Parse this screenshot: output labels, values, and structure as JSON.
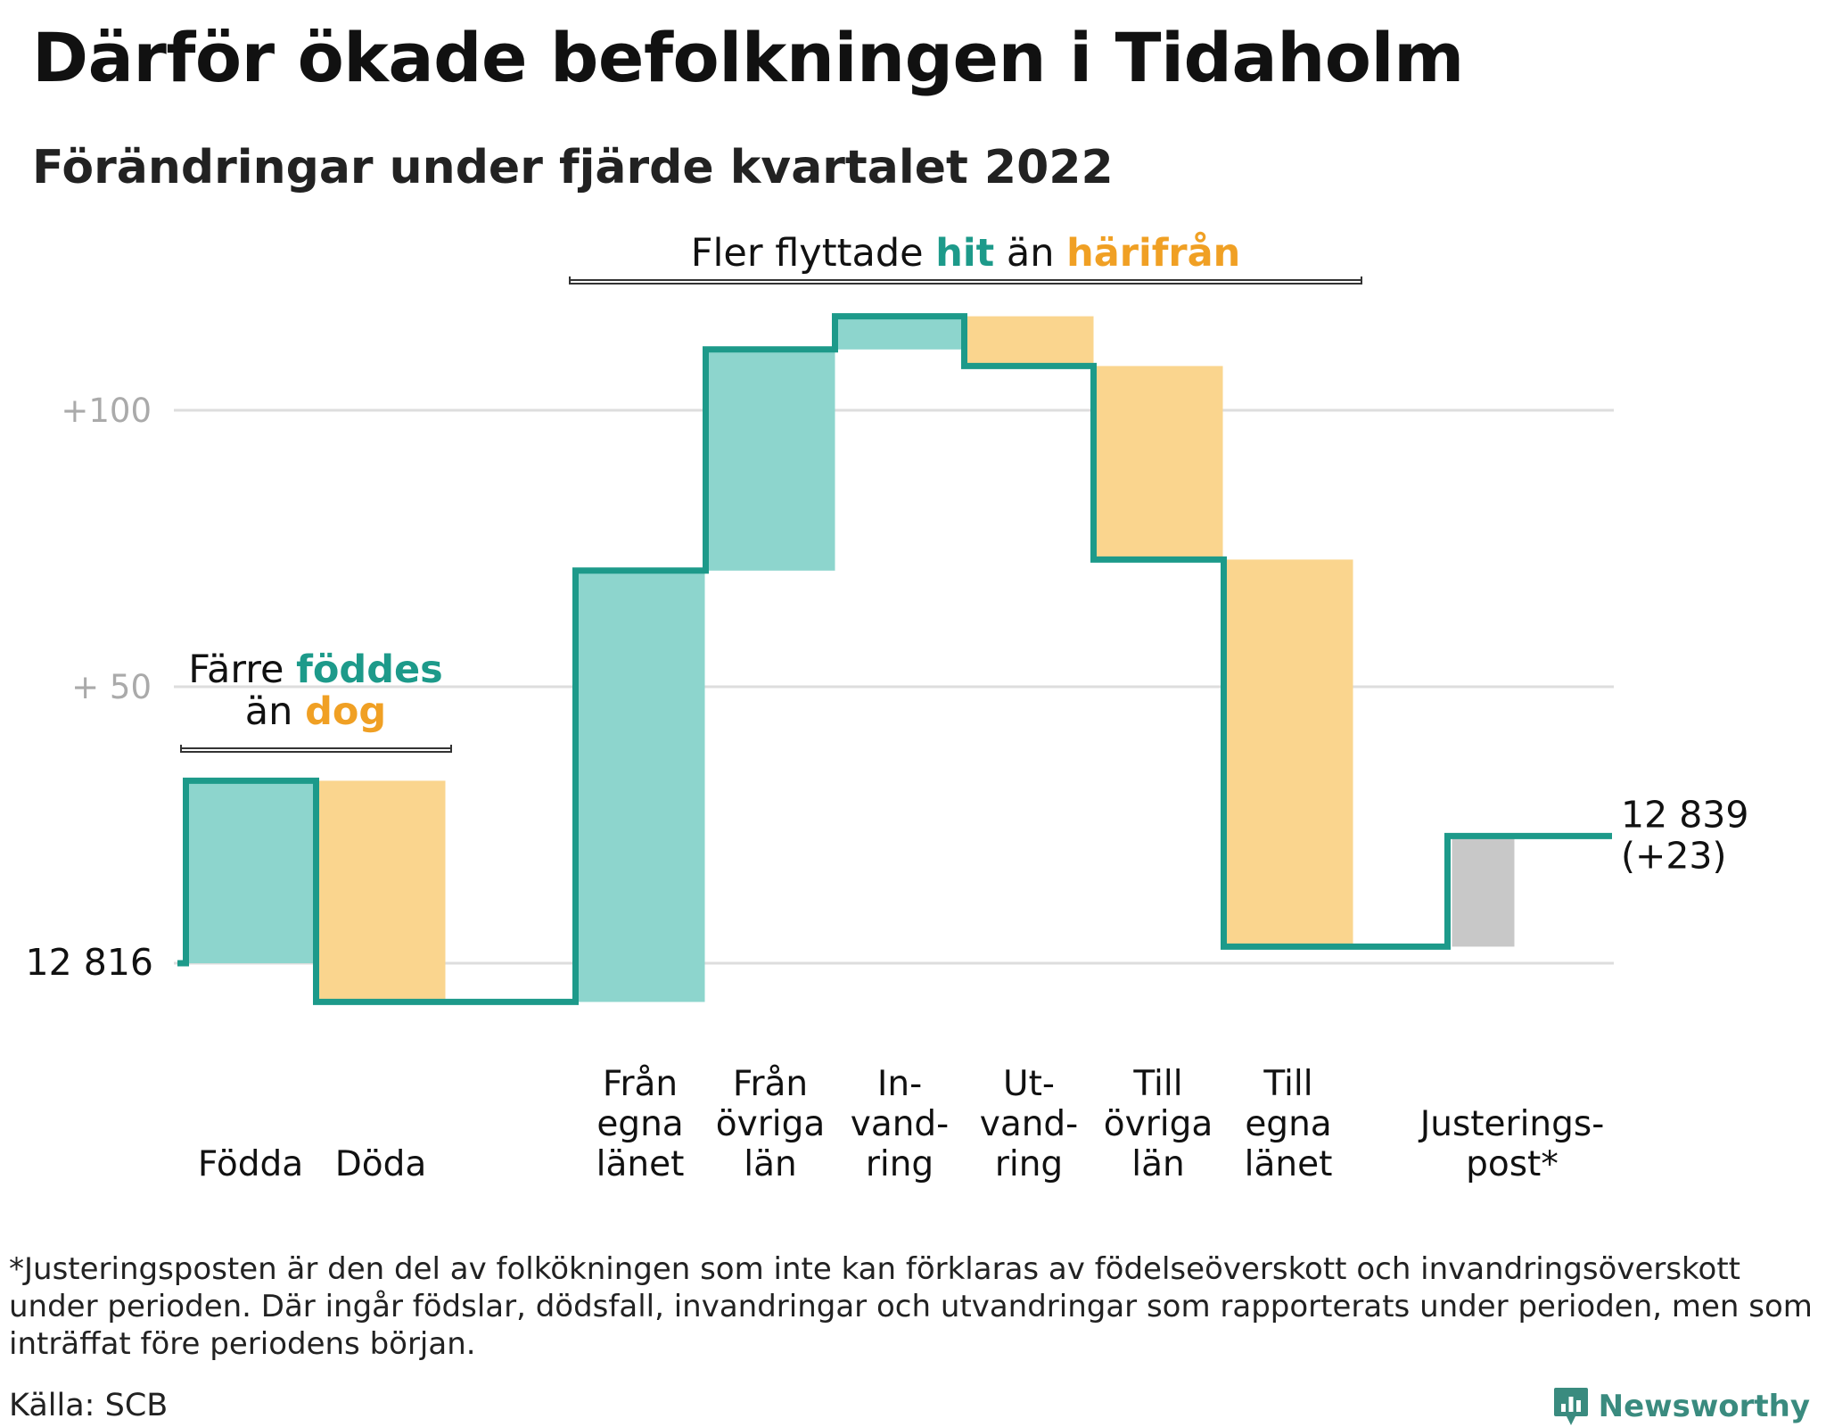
{
  "title": "Därför ökade befolkningen i Tidaholm",
  "subtitle": "Förändringar under fjärde kvartalet 2022",
  "chart_data": {
    "type": "waterfall",
    "start_value": 12816,
    "start_label": "12 816",
    "end_label": "12 839",
    "end_change_label": "(+23)",
    "yticks": [
      {
        "value": 100,
        "label": "+100"
      },
      {
        "value": 50,
        "label": "+ 50"
      }
    ],
    "grid": true,
    "colors": {
      "increase": "#8dd5cd",
      "decrease": "#fad58e",
      "adjustment": "#c8c8c8",
      "line": "#1d9a8a",
      "grid": "#dddddd",
      "teal_text": "#1d9a8a",
      "orange_text": "#f0a024"
    },
    "steps": [
      {
        "label": "Födda",
        "change": 33,
        "kind": "increase"
      },
      {
        "label": "Döda",
        "change": -40,
        "kind": "decrease"
      },
      {
        "label": "Från\negna\nlänet",
        "change": 78,
        "kind": "increase"
      },
      {
        "label": "Från\növriga\nlän",
        "change": 40,
        "kind": "increase"
      },
      {
        "label": "In-\nvand-\nring",
        "change": 6,
        "kind": "increase"
      },
      {
        "label": "Ut-\nvand-\nring",
        "change": -9,
        "kind": "decrease"
      },
      {
        "label": "Till\növriga\nlän",
        "change": -35,
        "kind": "decrease"
      },
      {
        "label": "Till\negna\nlänet",
        "change": -70,
        "kind": "decrease"
      },
      {
        "label": "Justerings-\npost*",
        "change": 20,
        "kind": "adjustment"
      }
    ],
    "annotations": {
      "births": {
        "text1": "Färre ",
        "highlight1": "föddes",
        "line2_highlight": "dog",
        "line2_prefix": "än "
      },
      "migration": {
        "text1": "Fler flyttade ",
        "highlight1": "hit",
        "text2": " än ",
        "highlight2": "härifrån"
      }
    }
  },
  "footnote": "*Justeringsposten är den del av folkökningen som inte kan förklaras av födelseöverskott och invandringsöverskott under perioden. Där ingår födslar, dödsfall, invandringar och utvandringar som rapporterats under perioden, men som inträffat före periodens början.",
  "source": "Källa: SCB",
  "brand": "Newsworthy"
}
